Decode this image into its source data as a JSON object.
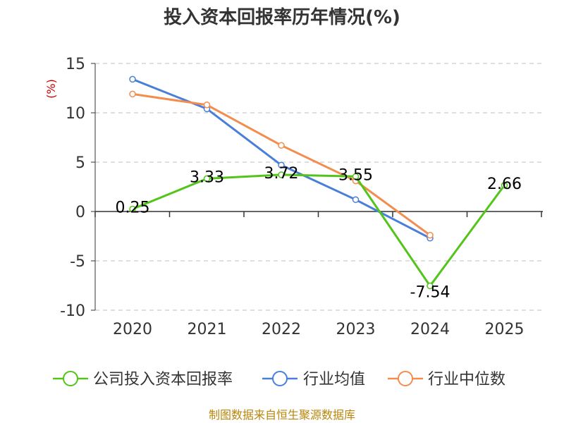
{
  "chart_data": {
    "type": "line",
    "title": "投入资本回报率历年情况(%)",
    "ylabel": "(%)",
    "xlabel": "",
    "categories": [
      "2020",
      "2021",
      "2022",
      "2023",
      "2024",
      "2025"
    ],
    "ylim": [
      -10,
      15
    ],
    "yticks": [
      15,
      10,
      5,
      0,
      -5,
      -10
    ],
    "grid": true,
    "legend_position": "bottom",
    "series": [
      {
        "name": "公司投入资本回报率",
        "color": "#52c41a",
        "values": [
          0.25,
          3.33,
          3.72,
          3.55,
          -7.54,
          2.66
        ],
        "labels": [
          "0.25",
          "3.33",
          "3.72",
          "3.55",
          "-7.54",
          "2.66"
        ]
      },
      {
        "name": "行业均值",
        "color": "#4a7fd9",
        "values": [
          13.4,
          10.4,
          4.7,
          1.2,
          -2.7,
          null
        ]
      },
      {
        "name": "行业中位数",
        "color": "#f28c4f",
        "values": [
          11.9,
          10.8,
          6.7,
          3.1,
          -2.4,
          null
        ]
      }
    ]
  },
  "source": "制图数据来自恒生聚源数据库"
}
